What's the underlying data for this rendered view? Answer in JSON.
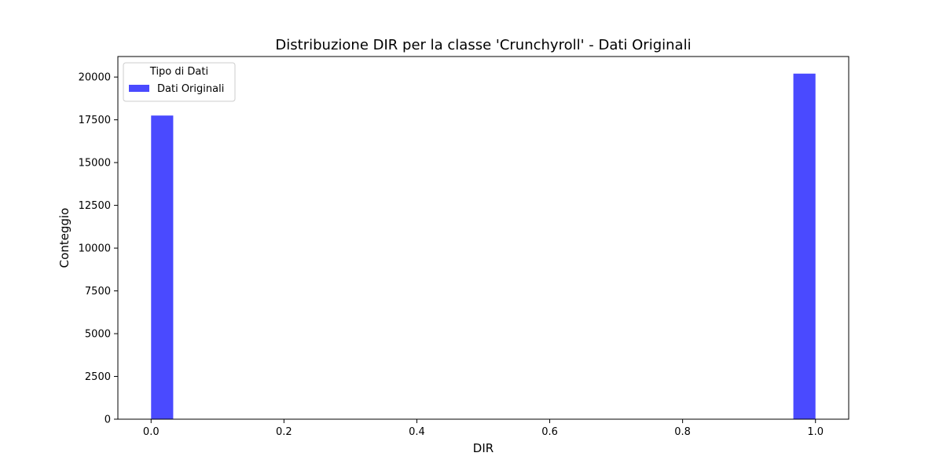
{
  "chart_data": {
    "type": "bar",
    "title": "Distribuzione DIR per la classe 'Crunchyroll' - Dati Originali",
    "xlabel": "DIR",
    "ylabel": "Conteggio",
    "xlim": [
      -0.05,
      1.05
    ],
    "ylim": [
      0,
      21200
    ],
    "xticks": [
      0.0,
      0.2,
      0.4,
      0.6,
      0.8,
      1.0
    ],
    "xtick_labels": [
      "0.0",
      "0.2",
      "0.4",
      "0.6",
      "0.8",
      "1.0"
    ],
    "yticks": [
      0,
      2500,
      5000,
      7500,
      10000,
      12500,
      15000,
      17500,
      20000
    ],
    "ytick_labels": [
      "0",
      "2500",
      "5000",
      "7500",
      "10000",
      "12500",
      "15000",
      "17500",
      "20000"
    ],
    "grid": false,
    "legend": {
      "title": "Tipo di Dati",
      "placement": "top-left"
    },
    "bin_width": 0.0333,
    "series": [
      {
        "name": "Dati Originali",
        "color": "#4a4aff",
        "bins": [
          {
            "x_start": 0.0,
            "value": 17750
          },
          {
            "x_start": 0.9667,
            "value": 20200
          }
        ]
      }
    ]
  }
}
